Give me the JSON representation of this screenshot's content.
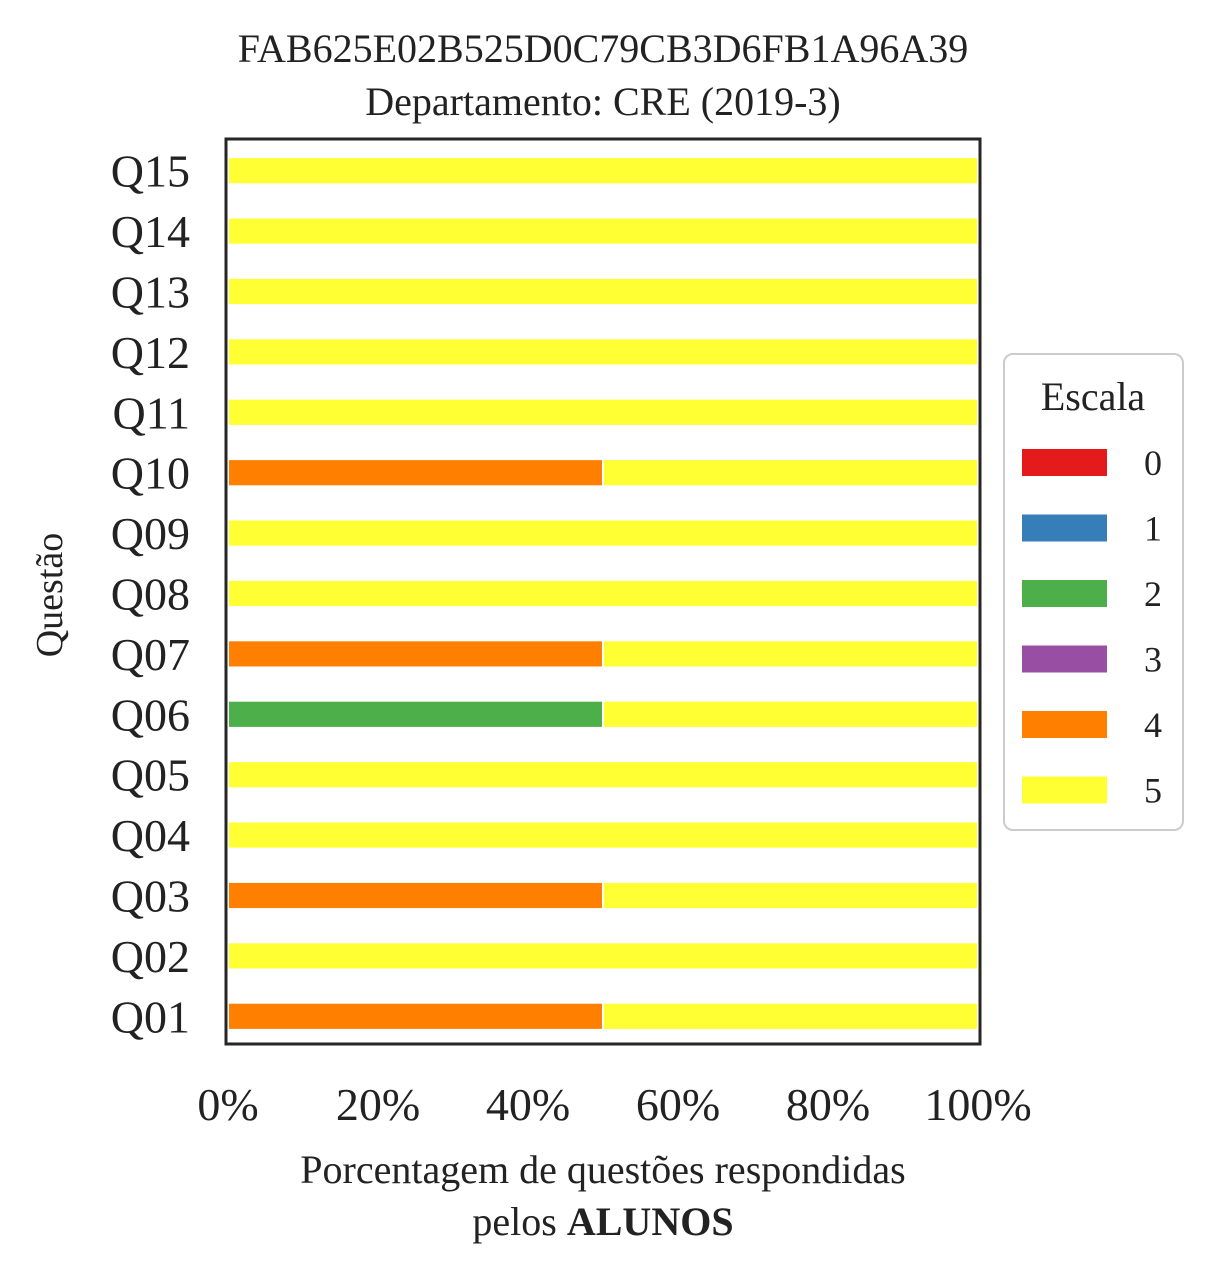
{
  "chart_data": {
    "type": "bar",
    "orientation": "horizontal",
    "stacked": true,
    "title": "FAB625E02B525D0C79CB3D6FB1A96A39",
    "subtitle": "Departamento: CRE (2019-3)",
    "xlabel_line1": "Porcentagem de questões respondidas",
    "xlabel_line2_prefix": "pelos ",
    "xlabel_line2_bold": "ALUNOS",
    "ylabel": "Questão",
    "xlim": [
      0,
      100
    ],
    "x_ticks": [
      "0%",
      "20%",
      "40%",
      "60%",
      "80%",
      "100%"
    ],
    "categories": [
      "Q01",
      "Q02",
      "Q03",
      "Q04",
      "Q05",
      "Q06",
      "Q07",
      "Q08",
      "Q09",
      "Q10",
      "Q11",
      "Q12",
      "Q13",
      "Q14",
      "Q15"
    ],
    "series": [
      {
        "name": "0",
        "color": "#e41a1c",
        "values": [
          0,
          0,
          0,
          0,
          0,
          0,
          0,
          0,
          0,
          0,
          0,
          0,
          0,
          0,
          0
        ]
      },
      {
        "name": "1",
        "color": "#377eb8",
        "values": [
          0,
          0,
          0,
          0,
          0,
          0,
          0,
          0,
          0,
          0,
          0,
          0,
          0,
          0,
          0
        ]
      },
      {
        "name": "2",
        "color": "#4daf4a",
        "values": [
          0,
          0,
          0,
          0,
          0,
          50,
          0,
          0,
          0,
          0,
          0,
          0,
          0,
          0,
          0
        ]
      },
      {
        "name": "3",
        "color": "#984ea3",
        "values": [
          0,
          0,
          0,
          0,
          0,
          0,
          0,
          0,
          0,
          0,
          0,
          0,
          0,
          0,
          0
        ]
      },
      {
        "name": "4",
        "color": "#ff7f00",
        "values": [
          50,
          0,
          50,
          0,
          0,
          0,
          50,
          0,
          0,
          50,
          0,
          0,
          0,
          0,
          0
        ]
      },
      {
        "name": "5",
        "color": "#ffff33",
        "values": [
          50,
          100,
          50,
          100,
          100,
          50,
          50,
          100,
          100,
          50,
          100,
          100,
          100,
          100,
          100
        ]
      }
    ],
    "legend": {
      "title": "Escala",
      "placement": "right"
    },
    "grid": false
  }
}
